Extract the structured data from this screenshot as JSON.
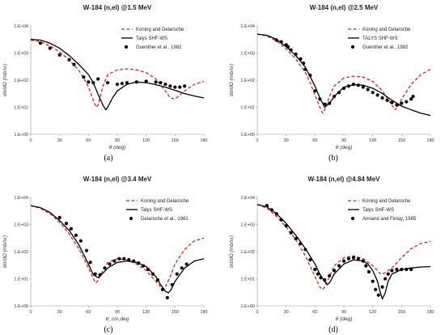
{
  "figure": {
    "panel_tags": [
      "(a)",
      "(b)",
      "(c)",
      "(d)"
    ]
  },
  "chart_data": [
    {
      "type": "line",
      "title": "W-184 (n,el) @1.5 MeV",
      "xlabel": "θ (deg)",
      "ylabel": "dσ/dΩ (mb/sr)",
      "xlim": [
        0,
        180
      ],
      "ylim": [
        1,
        10000
      ],
      "yscale": "log",
      "x_ticks": [
        "0",
        "30",
        "60",
        "90",
        "120",
        "150",
        "180"
      ],
      "y_ticks": [
        "1.E+00",
        "1.E+01",
        "1.E+02",
        "1.E+03",
        "1.E+04"
      ],
      "legend_position": "top-right",
      "series": [
        {
          "name": "Koning and Delaroche",
          "style": "dashed",
          "color": "#e02020",
          "x": [
            0,
            10,
            20,
            30,
            40,
            50,
            55,
            60,
            65,
            68,
            70,
            75,
            80,
            90,
            100,
            110,
            120,
            130,
            140,
            145,
            150,
            155,
            160,
            170,
            180
          ],
          "y": [
            3000,
            2600,
            1800,
            1100,
            550,
            230,
            120,
            55,
            18,
            10,
            12,
            60,
            160,
            240,
            260,
            240,
            190,
            110,
            40,
            22,
            20,
            28,
            40,
            70,
            90
          ]
        },
        {
          "name": "Talys SHF-WS",
          "style": "solid",
          "color": "#000000",
          "x": [
            0,
            10,
            20,
            30,
            40,
            50,
            60,
            65,
            70,
            75,
            78,
            80,
            85,
            90,
            100,
            110,
            120,
            130,
            140,
            150,
            160,
            170,
            180
          ],
          "y": [
            3200,
            3000,
            2300,
            1500,
            800,
            380,
            160,
            80,
            30,
            12,
            8,
            10,
            22,
            40,
            70,
            85,
            80,
            68,
            55,
            42,
            32,
            26,
            22
          ]
        },
        {
          "name": "Guenther et al., 1982",
          "style": "markers",
          "color": "#000000",
          "x": [
            10,
            20,
            30,
            40,
            45,
            55,
            60,
            65,
            70,
            80,
            90,
            95,
            100,
            110,
            120,
            130,
            135,
            140,
            145,
            150,
            155,
            160
          ],
          "y": [
            2300,
            1500,
            850,
            560,
            380,
            130,
            85,
            80,
            110,
            80,
            70,
            75,
            80,
            85,
            90,
            85,
            80,
            70,
            60,
            55,
            55,
            60
          ]
        }
      ]
    },
    {
      "type": "line",
      "title": "W-184 (n,el) @2.5 MeV",
      "xlabel": "θ (deg)",
      "ylabel": "dσ/dΩ (mb/sr)",
      "xlim": [
        0,
        180
      ],
      "ylim": [
        1,
        10000
      ],
      "yscale": "log",
      "x_ticks": [
        "0",
        "30",
        "60",
        "90",
        "120",
        "150",
        "180"
      ],
      "y_ticks": [
        "1.E+00",
        "1.E+01",
        "1.E+02",
        "1.E+03",
        "1.E+04"
      ],
      "legend_position": "top-right",
      "series": [
        {
          "name": "Koning and Delaroche",
          "style": "dashed",
          "color": "#e02020",
          "x": [
            0,
            10,
            20,
            30,
            40,
            50,
            55,
            60,
            65,
            68,
            70,
            75,
            80,
            90,
            100,
            110,
            120,
            130,
            140,
            143,
            146,
            150,
            160,
            170,
            180
          ],
          "y": [
            5000,
            4200,
            2800,
            1400,
            600,
            190,
            80,
            28,
            10,
            6,
            8,
            25,
            60,
            120,
            140,
            130,
            90,
            40,
            12,
            8,
            10,
            20,
            70,
            160,
            250
          ]
        },
        {
          "name": "TALYS SHF-WS",
          "style": "solid",
          "color": "#000000",
          "x": [
            0,
            10,
            20,
            30,
            40,
            50,
            60,
            65,
            70,
            75,
            80,
            90,
            100,
            110,
            120,
            130,
            140,
            150,
            160,
            170,
            180
          ],
          "y": [
            5000,
            4500,
            3200,
            1700,
            800,
            300,
            60,
            22,
            10,
            14,
            25,
            55,
            68,
            65,
            50,
            32,
            18,
            11,
            8,
            6,
            5
          ]
        },
        {
          "name": "Guenther et al., 1982",
          "style": "markers",
          "color": "#000000",
          "x": [
            20,
            25,
            30,
            32,
            35,
            40,
            45,
            48,
            50,
            55,
            60,
            65,
            70,
            75,
            80,
            85,
            90,
            95,
            100,
            105,
            110,
            115,
            120,
            125,
            130,
            135,
            140,
            145,
            150,
            155,
            160,
            162
          ],
          "y": [
            3000,
            2600,
            2000,
            1700,
            1300,
            900,
            600,
            420,
            250,
            150,
            40,
            20,
            13,
            14,
            25,
            35,
            50,
            60,
            70,
            65,
            55,
            45,
            35,
            28,
            22,
            18,
            15,
            12,
            14,
            16,
            20,
            25
          ]
        }
      ]
    },
    {
      "type": "line",
      "title": "W-184 (n,el) @3.4 MeV",
      "xlabel": "θ_cm,deg",
      "ylabel": "dσ/dΩ (mb/sr)",
      "xlim": [
        0,
        180
      ],
      "ylim": [
        1,
        10000
      ],
      "yscale": "log",
      "x_ticks": [
        "0",
        "30",
        "60",
        "90",
        "120",
        "150",
        "180"
      ],
      "y_ticks": [
        "1.E+00",
        "1.E+01",
        "1.E+02",
        "1.E+03",
        "1.E+04"
      ],
      "legend_position": "top-right",
      "series": [
        {
          "name": "Koning and Delaroche",
          "style": "dashed",
          "color": "#e02020",
          "x": [
            0,
            10,
            20,
            30,
            40,
            50,
            60,
            65,
            68,
            70,
            75,
            80,
            90,
            100,
            110,
            120,
            130,
            135,
            138,
            140,
            145,
            150,
            160,
            170,
            180
          ],
          "y": [
            5000,
            4000,
            2500,
            1200,
            450,
            130,
            25,
            10,
            7,
            9,
            20,
            40,
            55,
            50,
            35,
            20,
            8,
            5,
            4,
            5,
            12,
            35,
            120,
            250,
            320
          ]
        },
        {
          "name": "Talys SHF-WS",
          "style": "solid",
          "color": "#000000",
          "x": [
            0,
            10,
            20,
            30,
            40,
            50,
            60,
            65,
            70,
            75,
            80,
            90,
            100,
            110,
            120,
            130,
            135,
            140,
            143,
            146,
            150,
            160,
            170,
            180
          ],
          "y": [
            5000,
            4200,
            2800,
            1400,
            600,
            180,
            35,
            14,
            11,
            16,
            25,
            40,
            45,
            40,
            28,
            12,
            6,
            3.5,
            3,
            4,
            8,
            25,
            45,
            55
          ]
        },
        {
          "name": "Delaroche et al., 1981",
          "style": "markers",
          "color": "#000000",
          "x": [
            30,
            37,
            42,
            47,
            52,
            58,
            62,
            67,
            72,
            77,
            82,
            87,
            92,
            97,
            102,
            107,
            112,
            117,
            122,
            127,
            132,
            137,
            142,
            147,
            152,
            157,
            162
          ],
          "y": [
            1800,
            1100,
            700,
            400,
            250,
            110,
            40,
            15,
            14,
            25,
            35,
            45,
            55,
            55,
            50,
            45,
            38,
            30,
            22,
            15,
            9,
            4,
            2,
            6,
            15,
            25,
            35
          ]
        }
      ]
    },
    {
      "type": "line",
      "title": "W-184 (n,el) @4.84 MeV",
      "xlabel": "θ (deg)",
      "ylabel": "dσ/dΩ (mb/sr)",
      "xlim": [
        0,
        180
      ],
      "ylim": [
        1,
        10000
      ],
      "yscale": "log",
      "x_ticks": [
        "0",
        "30",
        "60",
        "90",
        "120",
        "150",
        "180"
      ],
      "y_ticks": [
        "1.E+00",
        "1.E+01",
        "1.E+02",
        "1.E+03",
        "1.E+04"
      ],
      "legend_position": "top-right",
      "series": [
        {
          "name": "Koning and Delaroche",
          "style": "dashed",
          "color": "#e02020",
          "x": [
            0,
            10,
            20,
            30,
            40,
            50,
            60,
            65,
            68,
            70,
            75,
            80,
            90,
            100,
            110,
            120,
            125,
            128,
            132,
            140,
            150,
            160,
            170,
            180
          ],
          "y": [
            5500,
            4000,
            2000,
            800,
            280,
            70,
            12,
            5,
            4,
            5,
            12,
            30,
            60,
            70,
            55,
            30,
            20,
            15,
            16,
            25,
            60,
            130,
            200,
            240
          ]
        },
        {
          "name": "Talys SHF-WS",
          "style": "solid",
          "color": "#000000",
          "x": [
            0,
            10,
            20,
            30,
            40,
            50,
            60,
            65,
            70,
            73,
            76,
            80,
            90,
            100,
            110,
            115,
            120,
            125,
            128,
            130,
            133,
            136,
            140,
            150,
            160,
            170,
            180
          ],
          "y": [
            5500,
            4500,
            2500,
            1100,
            400,
            130,
            35,
            15,
            8,
            6,
            8,
            15,
            35,
            50,
            45,
            35,
            20,
            8,
            3,
            1.8,
            3,
            8,
            15,
            22,
            25,
            27,
            28
          ]
        },
        {
          "name": "Annand and Finlay, 1985",
          "style": "markers",
          "color": "#000000",
          "x": [
            10,
            15,
            20,
            25,
            30,
            35,
            40,
            45,
            50,
            55,
            60,
            63,
            66,
            70,
            75,
            80,
            85,
            90,
            95,
            100,
            105,
            110,
            113,
            116,
            120,
            123,
            126,
            130,
            133,
            136,
            140,
            145,
            150,
            155,
            160
          ],
          "y": [
            5000,
            3500,
            2500,
            1500,
            900,
            500,
            300,
            200,
            120,
            50,
            22,
            15,
            11,
            9,
            13,
            20,
            30,
            45,
            55,
            60,
            55,
            45,
            30,
            18,
            8,
            4,
            2.5,
            5,
            10,
            15,
            20,
            22,
            22,
            22,
            22
          ]
        }
      ]
    }
  ]
}
